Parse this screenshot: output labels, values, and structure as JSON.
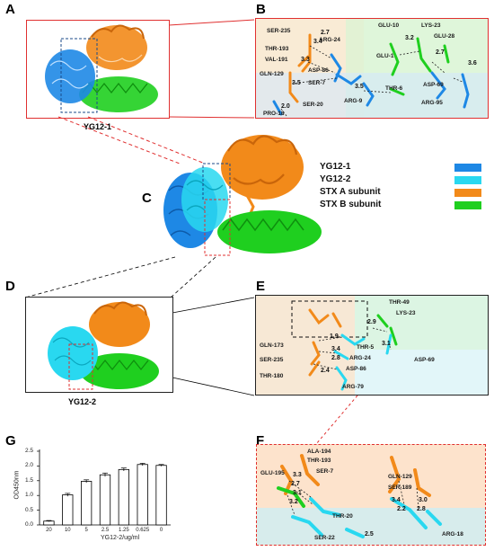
{
  "panels": {
    "A": {
      "letter": "A",
      "caption": "YG12-1"
    },
    "B": {
      "letter": "B",
      "residue_labels": [
        "SER-235",
        "THR-193",
        "VAL-191",
        "GLN-129",
        "ARG-24",
        "ASP-86",
        "SER-7",
        "GLU-10",
        "LYS-23",
        "GLU-28",
        "GLU-1",
        "THR-6",
        "ASP-69",
        "ARG-9",
        "SER-20",
        "PRO-18",
        "ARG-95"
      ],
      "distances": [
        "2.7",
        "3.4",
        "3.3",
        "3.5",
        "2.0",
        "3.2",
        "2.7",
        "3.6",
        "3.5"
      ]
    },
    "C": {
      "letter": "C"
    },
    "D": {
      "letter": "D",
      "caption": "YG12-2"
    },
    "E": {
      "letter": "E",
      "residue_labels": [
        "THR-49",
        "LYS-23",
        "GLN-173",
        "THR-5",
        "ARG-24",
        "SER-235",
        "ASP-86",
        "THR-180",
        "ARG-79",
        "ASP-69"
      ],
      "distances": [
        "1.9",
        "2.9",
        "3.4",
        "2.8",
        "2.4",
        "3.1"
      ]
    },
    "F": {
      "letter": "F",
      "residue_labels": [
        "ALA-194",
        "THR-193",
        "GLU-195",
        "SER-7",
        "GLN-129",
        "SER-189",
        "THR-20",
        "SER-22",
        "ARG-18"
      ],
      "distances": [
        "3.3",
        "2.7",
        "3.1",
        "3.2",
        "3.4",
        "3.0",
        "2.2",
        "2.8",
        "2.5"
      ]
    },
    "G": {
      "letter": "G"
    }
  },
  "legend": [
    {
      "label": "YG12-1",
      "color": "#1e88e5"
    },
    {
      "label": "YG12-2",
      "color": "#29d8f0"
    },
    {
      "label": "STX A subunit",
      "color": "#f28a1a"
    },
    {
      "label": "STX B subunit",
      "color": "#1fcf1f"
    }
  ],
  "chart_data": {
    "type": "bar",
    "categories": [
      "20",
      "10",
      "5",
      "2.5",
      "1.25",
      "0.625",
      "0"
    ],
    "values": [
      0.13,
      1.02,
      1.48,
      1.7,
      1.88,
      2.05,
      2.02
    ],
    "errors": [
      0.02,
      0.05,
      0.05,
      0.06,
      0.05,
      0.04,
      0.03
    ],
    "xlabel": "YG12-2/ug/ml",
    "ylabel": "OD450nm",
    "yticks": [
      "0.0",
      "0.5",
      "1.0",
      "1.5",
      "2.0",
      "2.5"
    ],
    "ylim": [
      0,
      2.5
    ],
    "bar_color": "#ffffff",
    "edge_color": "#000000"
  }
}
